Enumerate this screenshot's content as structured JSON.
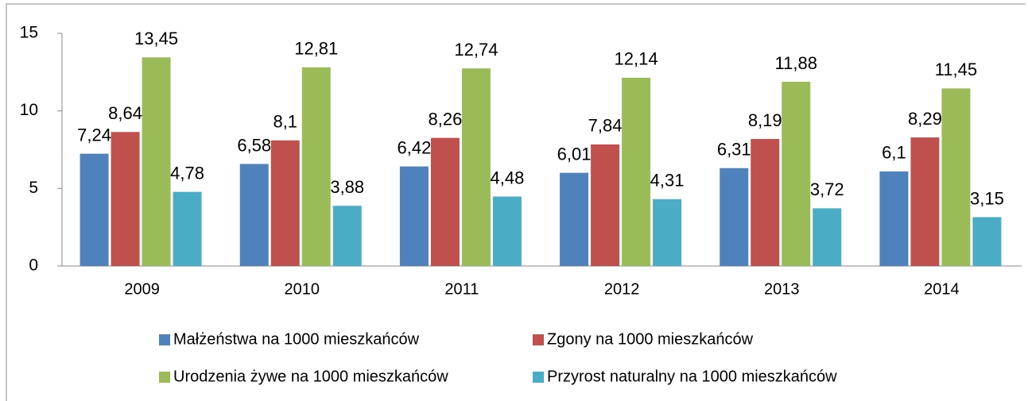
{
  "chart_data": {
    "type": "bar",
    "categories": [
      "2009",
      "2010",
      "2011",
      "2012",
      "2013",
      "2014"
    ],
    "series": [
      {
        "name": "Małżeństwa na 1000 mieszkańców",
        "color": "#4f81bd",
        "values": [
          7.24,
          6.58,
          6.42,
          6.01,
          6.31,
          6.1
        ],
        "value_labels": [
          "7,24",
          "6,58",
          "6,42",
          "6,01",
          "6,31",
          "6,1"
        ]
      },
      {
        "name": "Zgony na 1000 mieszkańców",
        "color": "#c0504d",
        "values": [
          8.64,
          8.1,
          8.26,
          7.84,
          8.19,
          8.29
        ],
        "value_labels": [
          "8,64",
          "8,1",
          "8,26",
          "7,84",
          "8,19",
          "8,29"
        ]
      },
      {
        "name": "Urodzenia żywe na 1000 mieszkańców",
        "color": "#9bbb59",
        "values": [
          13.45,
          12.81,
          12.74,
          12.14,
          11.88,
          11.45
        ],
        "value_labels": [
          "13,45",
          "12,81",
          "12,74",
          "12,14",
          "11,88",
          "11,45"
        ]
      },
      {
        "name": "Przyrost naturalny na 1000 mieszkańców",
        "color": "#4bacc6",
        "values": [
          4.78,
          3.88,
          4.48,
          4.31,
          3.72,
          3.15
        ],
        "value_labels": [
          "4,78",
          "3,88",
          "4,48",
          "4,31",
          "3,72",
          "3,15"
        ]
      }
    ],
    "ylim": [
      0,
      15
    ],
    "yticks": [
      0,
      5,
      10,
      15
    ],
    "legend": "bottom"
  }
}
